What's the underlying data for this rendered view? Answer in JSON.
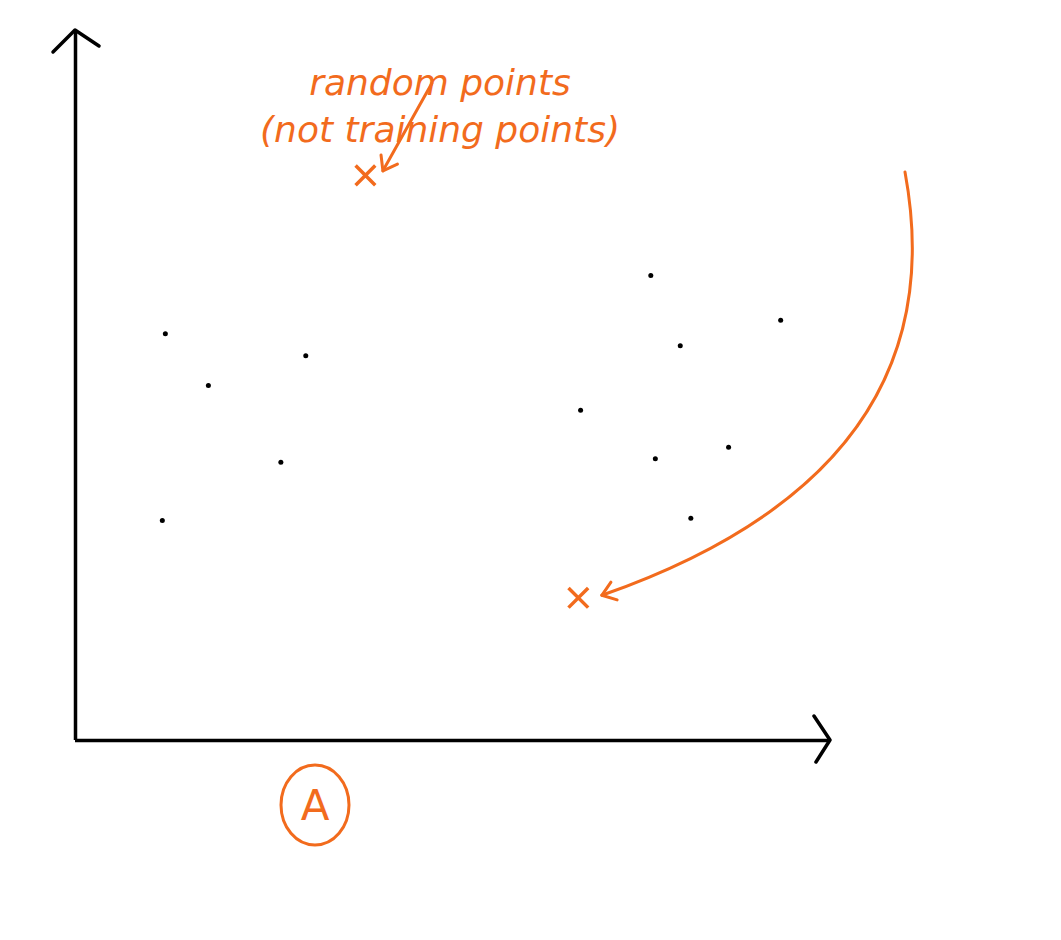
{
  "chart_data": {
    "type": "scatter",
    "series": [
      {
        "color": "#000000",
        "marker": "dot",
        "x": [
          11.9,
          17.6,
          30.5,
          27.2,
          11.5,
          76.2,
          80.1,
          93.4,
          66.9,
          76.8,
          86.5,
          81.5
        ],
        "values": [
          57.3,
          50.0,
          54.2,
          39.2,
          31.0,
          65.5,
          55.6,
          59.2,
          46.5,
          39.7,
          41.3,
          31.3
        ]
      },
      {
        "color": "#f26b1d",
        "marker": "x",
        "x": [
          38.4,
          66.6
        ],
        "values": [
          79.6,
          20.1
        ]
      }
    ],
    "annotations": [
      "random points",
      "(not training points)"
    ],
    "panel_label": "A",
    "xlim": [
      0,
      100
    ],
    "ylim": [
      0,
      100
    ],
    "xticks": [],
    "yticks": [],
    "tick_labels": false,
    "grid": false
  }
}
